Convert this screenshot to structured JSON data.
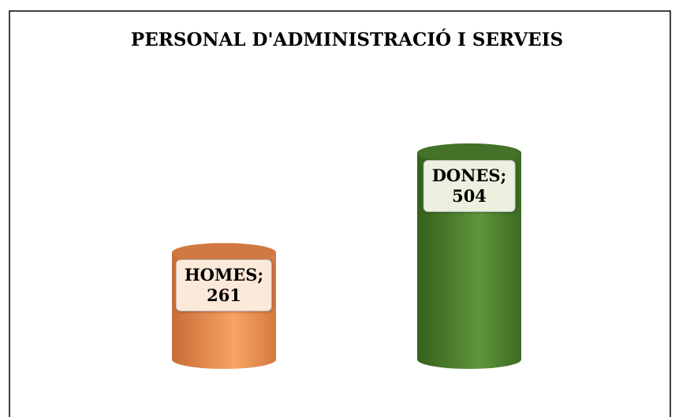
{
  "chart_data": {
    "type": "cylinder",
    "title": "PERSONAL D'ADMINISTRACIÓ I SERVEIS",
    "values": [
      261,
      504
    ],
    "value_labels": [
      "HOMES;\n261",
      "DONES;\n504"
    ],
    "colors": [
      "#e8864a",
      "#4a7f2c"
    ],
    "label_backgrounds": [
      "#fde9d9",
      "#ebf1de"
    ]
  }
}
